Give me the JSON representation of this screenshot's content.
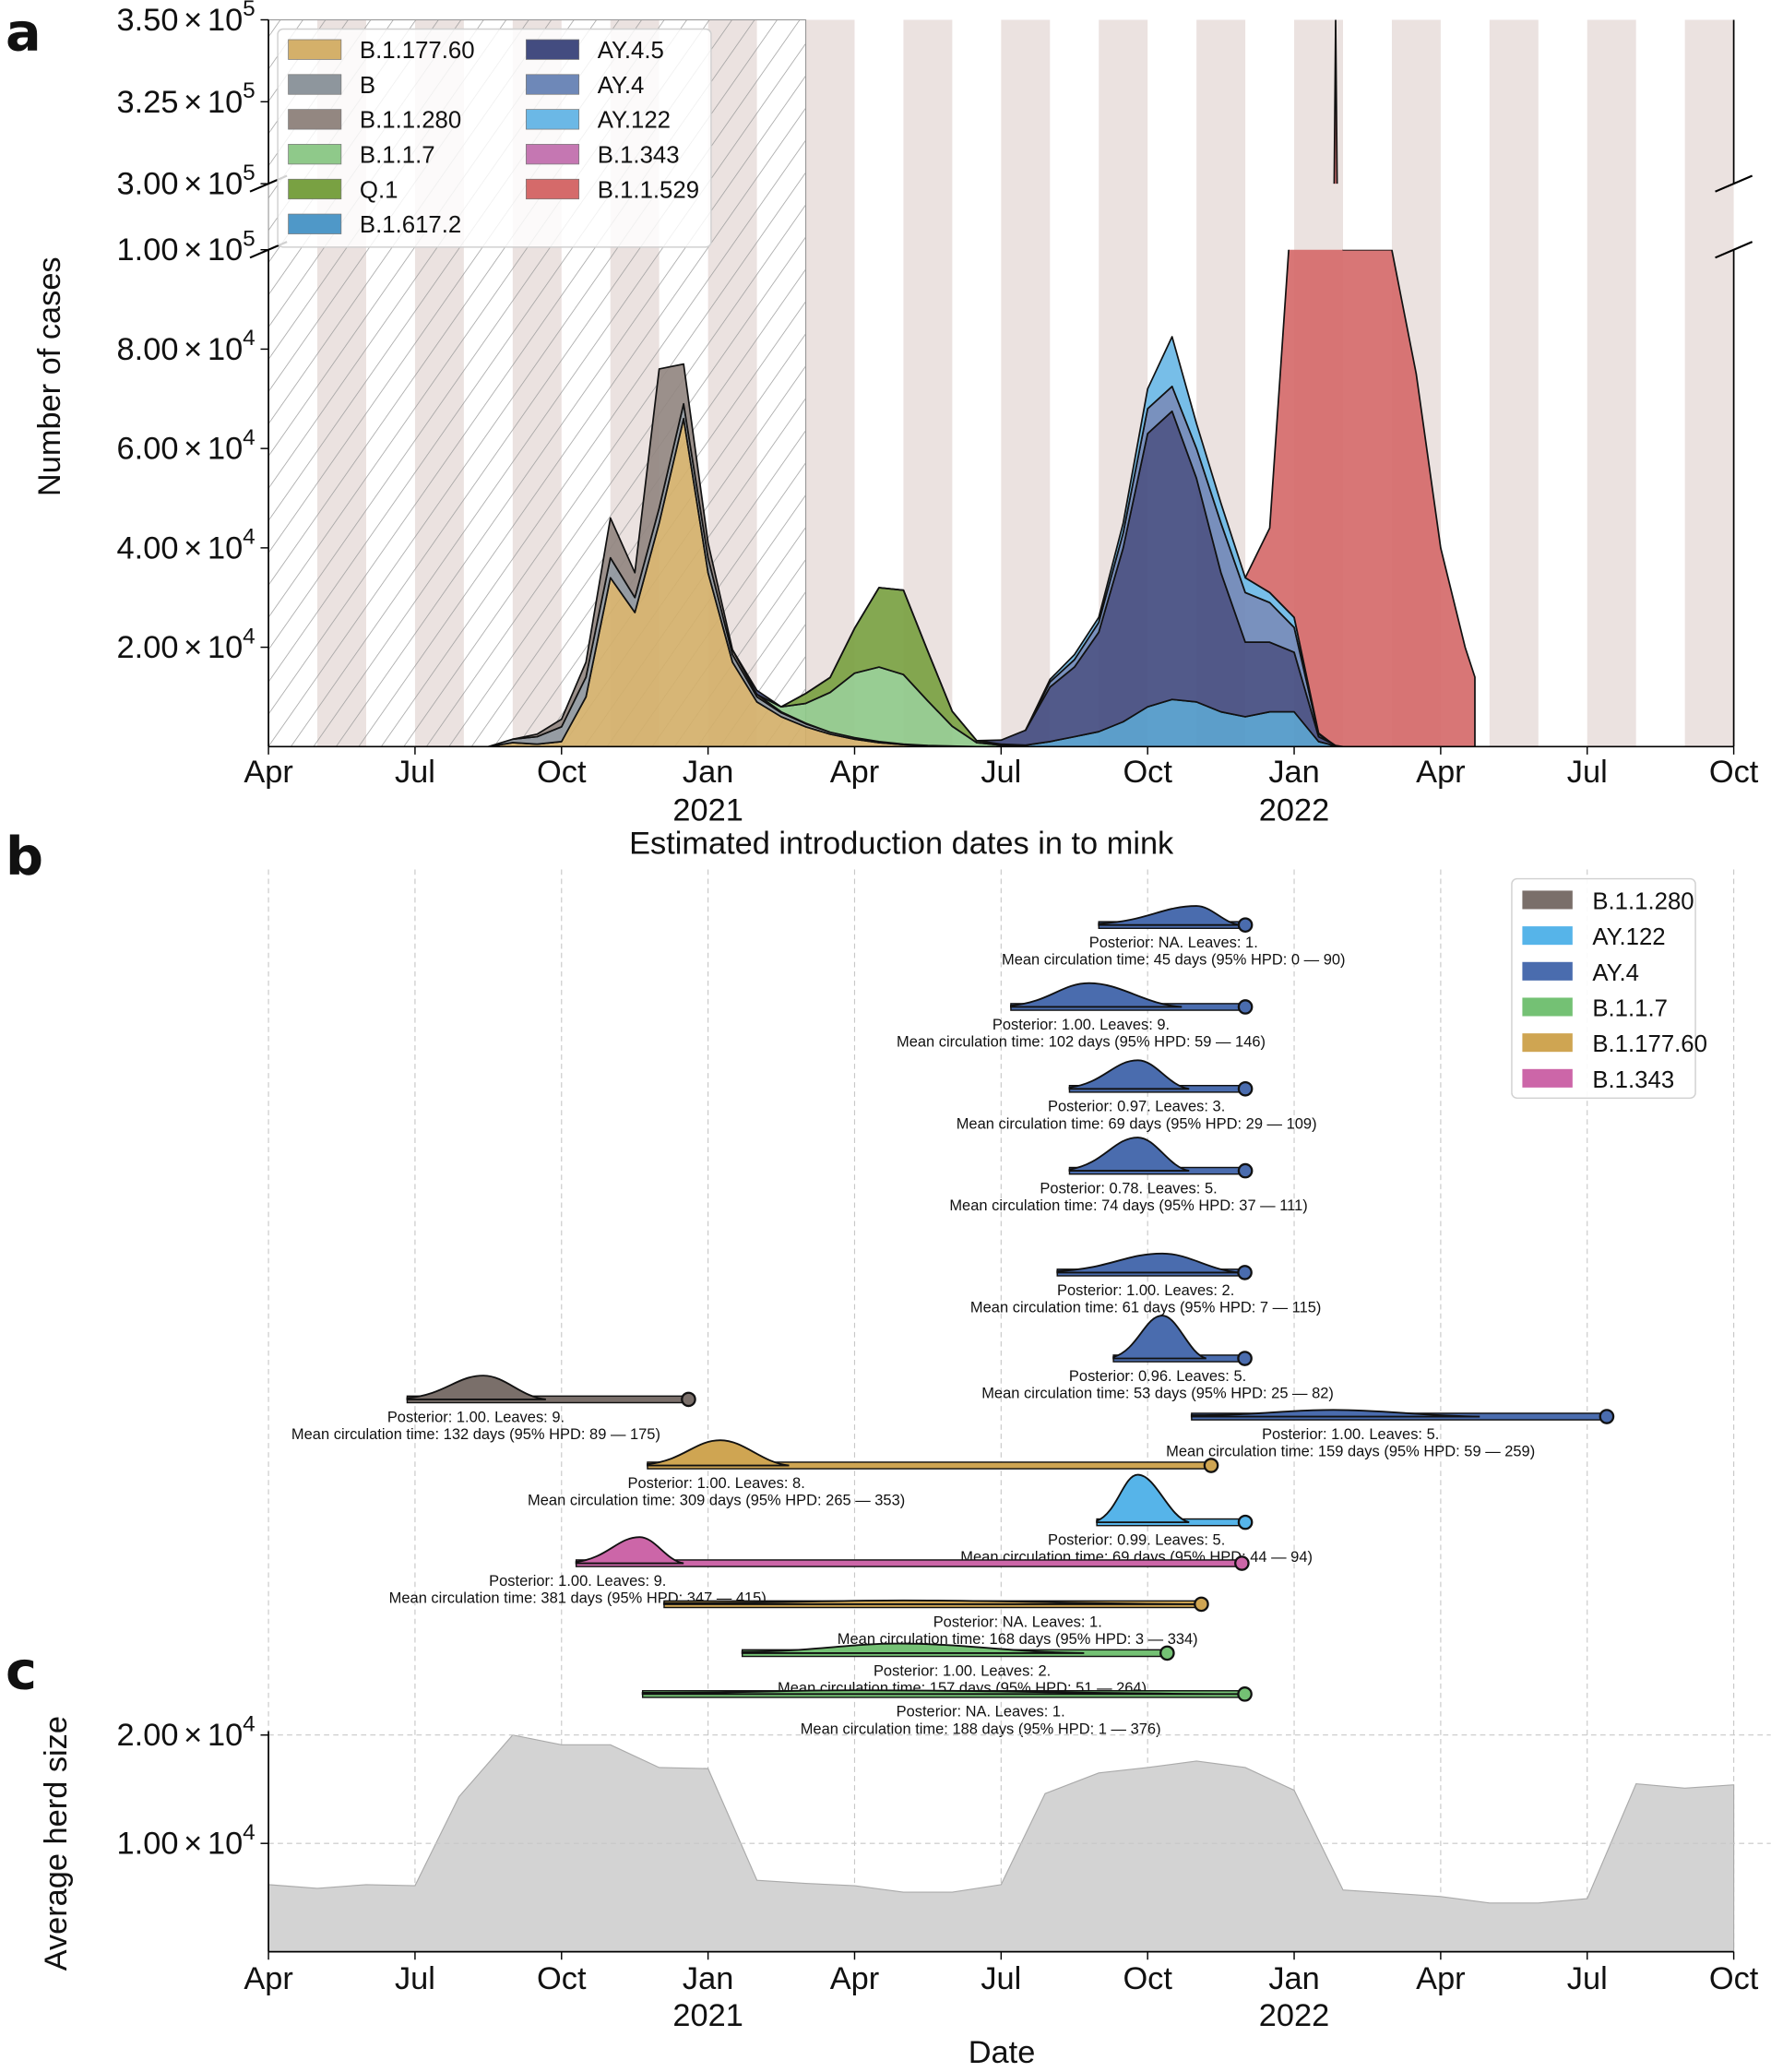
{
  "chart_data": [
    {
      "panel": "a",
      "type": "area",
      "stacked": true,
      "xlabel": "Estimated introduction dates in to mink",
      "ylabel": "Number of cases",
      "x_unit": "months since 2020-04",
      "xlim": [
        0,
        30
      ],
      "y_axis_broken": true,
      "ylim_lower": [
        0,
        100000
      ],
      "ylim_upper": [
        300000,
        350000
      ],
      "yticks_lower": [
        {
          "v": 20000,
          "m": "2.00",
          "e": "4"
        },
        {
          "v": 40000,
          "m": "4.00",
          "e": "4"
        },
        {
          "v": 60000,
          "m": "6.00",
          "e": "4"
        },
        {
          "v": 80000,
          "m": "8.00",
          "e": "4"
        },
        {
          "v": 100000,
          "m": "1.00",
          "e": "5"
        }
      ],
      "yticks_upper": [
        {
          "v": 300000,
          "m": "3.00",
          "e": "5"
        },
        {
          "v": 325000,
          "m": "3.25",
          "e": "5"
        },
        {
          "v": 350000,
          "m": "3.50",
          "e": "5"
        }
      ],
      "hatched_region": [
        0,
        11
      ],
      "legend_position": "top-left",
      "x": [
        4.5,
        5,
        5.5,
        6,
        6.5,
        7,
        7.5,
        8,
        8.5,
        9,
        9.5,
        10,
        10.5,
        11,
        11.5,
        12,
        12.5,
        13,
        13.5,
        14,
        14.5,
        15,
        15.5,
        16,
        16.5,
        17,
        17.5,
        18,
        18.5,
        19,
        19.5,
        20,
        20.5,
        21,
        21.5,
        21.7,
        21.85,
        22,
        22.5,
        23,
        23.5,
        24,
        24.5,
        24.7
      ],
      "series": [
        {
          "name": "B.1.177.60",
          "color": "#d4b06a",
          "values": [
            0,
            800,
            500,
            1000,
            10000,
            34000,
            27000,
            45000,
            66000,
            35000,
            17000,
            9000,
            6000,
            4000,
            2500,
            1500,
            800,
            400,
            200,
            100,
            0,
            0,
            0,
            0,
            0,
            0,
            0,
            0,
            0,
            0,
            0,
            0,
            0,
            0,
            0,
            0,
            0,
            0,
            0,
            0,
            0,
            0,
            0,
            0
          ]
        },
        {
          "name": "B",
          "color": "#8e969d",
          "values": [
            0,
            700,
            1500,
            3000,
            4000,
            4000,
            3000,
            3000,
            3000,
            3000,
            1500,
            1000,
            800,
            600,
            400,
            300,
            200,
            100,
            0,
            0,
            0,
            0,
            0,
            0,
            0,
            0,
            0,
            0,
            0,
            0,
            0,
            0,
            0,
            0,
            0,
            0,
            0,
            0,
            0,
            0,
            0,
            0,
            0,
            0
          ]
        },
        {
          "name": "B.1.1.280",
          "color": "#938781",
          "values": [
            0,
            0,
            500,
            1500,
            3000,
            8000,
            5000,
            28000,
            8000,
            3000,
            1000,
            500,
            200,
            100,
            0,
            0,
            0,
            0,
            0,
            0,
            0,
            0,
            0,
            0,
            0,
            0,
            0,
            0,
            0,
            0,
            0,
            0,
            0,
            0,
            0,
            0,
            0,
            0,
            0,
            0,
            0,
            0,
            0,
            0
          ]
        },
        {
          "name": "B.1.1.7",
          "color": "#8fc98a",
          "values": [
            0,
            0,
            0,
            0,
            0,
            0,
            0,
            0,
            0,
            0,
            0,
            0,
            1000,
            4000,
            8000,
            13000,
            15000,
            14000,
            9000,
            4000,
            800,
            300,
            0,
            0,
            0,
            0,
            0,
            0,
            0,
            0,
            0,
            0,
            0,
            0,
            0,
            0,
            0,
            0,
            0,
            0,
            0,
            0,
            0,
            0
          ]
        },
        {
          "name": "Q.1",
          "color": "#79a142",
          "values": [
            0,
            0,
            0,
            0,
            0,
            0,
            0,
            0,
            0,
            0,
            0,
            0,
            0,
            2000,
            3000,
            9000,
            16000,
            17000,
            10000,
            3000,
            400,
            200,
            0,
            0,
            0,
            0,
            0,
            0,
            0,
            0,
            0,
            0,
            0,
            0,
            0,
            0,
            0,
            0,
            0,
            0,
            0,
            0,
            0,
            0
          ]
        },
        {
          "name": "B.1.617.2",
          "color": "#4f98c8",
          "values": [
            0,
            0,
            0,
            0,
            0,
            0,
            0,
            0,
            0,
            0,
            0,
            0,
            0,
            0,
            0,
            0,
            0,
            0,
            0,
            0,
            0,
            0,
            300,
            1000,
            2000,
            3000,
            5000,
            8000,
            9500,
            9000,
            7000,
            6000,
            7000,
            7000,
            1000,
            500,
            0,
            0,
            0,
            0,
            0,
            0,
            0,
            0
          ]
        },
        {
          "name": "AY.4.5",
          "color": "#434c80",
          "values": [
            0,
            0,
            0,
            0,
            0,
            0,
            0,
            0,
            0,
            0,
            0,
            800,
            0,
            0,
            0,
            0,
            0,
            0,
            0,
            0,
            0,
            800,
            3000,
            11000,
            14000,
            20000,
            35000,
            55000,
            58000,
            45000,
            28000,
            15000,
            14000,
            12000,
            1000,
            500,
            200,
            0,
            0,
            0,
            0,
            0,
            0,
            0
          ]
        },
        {
          "name": "AY.4",
          "color": "#6e88b8",
          "values": [
            0,
            0,
            0,
            0,
            0,
            0,
            0,
            0,
            0,
            0,
            0,
            0,
            0,
            0,
            0,
            0,
            0,
            0,
            0,
            0,
            0,
            0,
            0,
            1000,
            1500,
            2000,
            3000,
            5000,
            5000,
            6000,
            10000,
            10000,
            8000,
            5000,
            500,
            200,
            0,
            0,
            0,
            0,
            0,
            0,
            0,
            0
          ]
        },
        {
          "name": "AY.122",
          "color": "#6bb8e6",
          "values": [
            0,
            0,
            0,
            0,
            0,
            0,
            0,
            0,
            0,
            0,
            0,
            0,
            0,
            0,
            0,
            0,
            0,
            0,
            0,
            0,
            0,
            0,
            0,
            500,
            1000,
            1000,
            2000,
            4000,
            10000,
            5000,
            4000,
            3000,
            2000,
            2000,
            200,
            0,
            0,
            0,
            0,
            0,
            0,
            0,
            0,
            0
          ]
        },
        {
          "name": "B.1.343",
          "color": "#c577b2",
          "values": [
            0,
            0,
            0,
            0,
            0,
            0,
            0,
            0,
            0,
            0,
            0,
            0,
            0,
            0,
            0,
            0,
            0,
            0,
            0,
            0,
            0,
            0,
            0,
            0,
            0,
            0,
            0,
            0,
            0,
            0,
            0,
            0,
            0,
            0,
            0,
            0,
            0,
            0,
            0,
            0,
            0,
            0,
            0,
            0
          ]
        },
        {
          "name": "B.1.1.529",
          "color": "#d56a6a",
          "values": [
            0,
            0,
            0,
            0,
            0,
            0,
            0,
            0,
            0,
            0,
            0,
            0,
            0,
            0,
            0,
            0,
            0,
            0,
            0,
            0,
            0,
            0,
            0,
            0,
            0,
            0,
            0,
            0,
            0,
            0,
            0,
            0,
            13000,
            90000,
            100000,
            100000,
            350000,
            100000,
            100000,
            100000,
            75000,
            40000,
            20000,
            14000
          ]
        }
      ],
      "legend": [
        [
          "B.1.177.60",
          "B",
          "B.1.1.280",
          "B.1.1.7",
          "Q.1",
          "B.1.617.2"
        ],
        [
          "AY.4.5",
          "AY.4",
          "AY.122",
          "B.1.343",
          "B.1.1.529"
        ]
      ]
    },
    {
      "panel": "b",
      "type": "ridgeline",
      "x_unit": "months since 2020-04",
      "legend_position": "top-right",
      "legend": [
        {
          "name": "B.1.1.280",
          "color": "#7a6f6a"
        },
        {
          "name": "AY.122",
          "color": "#56b4e9"
        },
        {
          "name": "AY.4",
          "color": "#4a6cae"
        },
        {
          "name": "B.1.1.7",
          "color": "#74c174"
        },
        {
          "name": "B.1.177.60",
          "color": "#cfa552"
        },
        {
          "name": "B.1.343",
          "color": "#cc66a8"
        }
      ],
      "clusters": [
        {
          "lineage": "AY.4",
          "start": 17.0,
          "peak": 19.0,
          "end": 19.9,
          "sample": 20.0,
          "rel_density": 0.4,
          "posterior": "Posterior: NA. Leaves: 1.",
          "circulation": "Mean circulation time: 45 days (95% HPD: 0 — 90)"
        },
        {
          "lineage": "AY.4",
          "start": 15.2,
          "peak": 16.8,
          "end": 18.7,
          "sample": 20.0,
          "rel_density": 0.5,
          "posterior": "Posterior: 1.00. Leaves: 9.",
          "circulation": "Mean circulation time: 102 days (95% HPD: 59 — 146)"
        },
        {
          "lineage": "AY.4",
          "start": 16.4,
          "peak": 17.8,
          "end": 18.85,
          "sample": 20.0,
          "rel_density": 0.6,
          "posterior": "Posterior: 0.97. Leaves: 3.",
          "circulation": "Mean circulation time: 69 days (95% HPD: 29 — 109)"
        },
        {
          "lineage": "AY.4",
          "start": 16.4,
          "peak": 17.8,
          "end": 18.85,
          "sample": 20.0,
          "rel_density": 0.7,
          "posterior": "Posterior: 0.78. Leaves: 5.",
          "circulation": "Mean circulation time: 74 days (95% HPD: 37 — 111)"
        },
        {
          "lineage": "AY.4",
          "start": 16.15,
          "peak": 18.3,
          "end": 19.9,
          "sample": 19.99,
          "rel_density": 0.4,
          "posterior": "Posterior: 1.00. Leaves: 2.",
          "circulation": "Mean circulation time: 61 days (95% HPD: 7 — 115)"
        },
        {
          "lineage": "AY.4",
          "start": 17.3,
          "peak": 18.3,
          "end": 19.2,
          "sample": 19.99,
          "rel_density": 0.9,
          "posterior": "Posterior: 0.96. Leaves: 5.",
          "circulation": "Mean circulation time: 53 days (95% HPD: 25 — 82)"
        },
        {
          "lineage": "B.1.1.280",
          "start": 2.84,
          "peak": 4.4,
          "end": 5.68,
          "sample": 8.6,
          "rel_density": 0.5,
          "posterior": "Posterior: 1.00. Leaves: 9.",
          "circulation": "Mean circulation time: 132 days (95% HPD: 89 — 175)"
        },
        {
          "lineage": "AY.4",
          "start": 18.9,
          "peak": 21.8,
          "end": 24.8,
          "sample": 27.4,
          "rel_density": 0.14,
          "posterior": "Posterior: 1.00. Leaves: 5.",
          "circulation": "Mean circulation time: 159 days (95% HPD: 59 — 259)"
        },
        {
          "lineage": "B.1.177.60",
          "start": 7.76,
          "peak": 9.25,
          "end": 10.66,
          "sample": 19.3,
          "rel_density": 0.53,
          "posterior": "Posterior: 1.00. Leaves: 8.",
          "circulation": "Mean circulation time: 309 days (95% HPD: 265 — 353)"
        },
        {
          "lineage": "AY.122",
          "start": 16.96,
          "peak": 17.8,
          "end": 18.85,
          "sample": 20.0,
          "rel_density": 1.0,
          "posterior": "Posterior: 0.99. Leaves: 5.",
          "circulation": "Mean circulation time: 69 days (95% HPD: 44 — 94)"
        },
        {
          "lineage": "B.1.343",
          "start": 6.3,
          "peak": 7.6,
          "end": 8.5,
          "sample": 19.93,
          "rel_density": 0.55,
          "posterior": "Posterior: 1.00. Leaves: 9.",
          "circulation": "Mean circulation time: 381 days (95% HPD: 347 — 415)"
        },
        {
          "lineage": "B.1.177.60",
          "start": 8.1,
          "peak": 13.0,
          "end": 19.0,
          "sample": 19.1,
          "rel_density": 0.08,
          "posterior": "Posterior: NA. Leaves: 1.",
          "circulation": "Mean circulation time: 168 days (95% HPD: 3 — 334)"
        },
        {
          "lineage": "B.1.1.7",
          "start": 9.7,
          "peak": 12.9,
          "end": 16.7,
          "sample": 18.4,
          "rel_density": 0.2,
          "posterior": "Posterior: 1.00. Leaves: 2.",
          "circulation": "Mean circulation time: 157 days (95% HPD: 51 — 264)"
        },
        {
          "lineage": "B.1.1.7",
          "start": 7.66,
          "peak": 12.0,
          "end": 19.9,
          "sample": 19.99,
          "rel_density": 0.08,
          "posterior": "Posterior: NA. Leaves: 1.",
          "circulation": "Mean circulation time: 188 days (95% HPD: 1 — 376)"
        }
      ]
    },
    {
      "panel": "c",
      "type": "area",
      "xlabel": "Date",
      "ylabel": "Average herd size",
      "x_unit": "months since 2020-04",
      "xlim": [
        0,
        30
      ],
      "ylim": [
        0,
        20000
      ],
      "yticks": [
        {
          "v": 10000,
          "m": "1.00",
          "e": "4"
        },
        {
          "v": 20000,
          "m": "2.00",
          "e": "4"
        }
      ],
      "grid": true,
      "color": "#d3d3d3",
      "x": [
        0,
        1,
        2,
        3,
        3.9,
        5,
        6,
        7,
        8,
        9,
        10,
        11,
        12,
        13,
        14,
        15,
        15.9,
        17,
        18,
        19,
        20,
        21,
        22,
        23,
        24,
        25,
        26,
        27,
        28,
        29,
        30
      ],
      "values": [
        6200,
        5850,
        6200,
        6100,
        14300,
        20000,
        19100,
        19100,
        17000,
        16900,
        6600,
        6300,
        6100,
        5500,
        5500,
        6200,
        14600,
        16500,
        17000,
        17600,
        17000,
        14900,
        5700,
        5400,
        5100,
        4500,
        4500,
        4900,
        15500,
        15100,
        15400
      ]
    }
  ],
  "xticks": [
    {
      "v": 0,
      "label": "Apr",
      "year": ""
    },
    {
      "v": 3,
      "label": "Jul",
      "year": ""
    },
    {
      "v": 6,
      "label": "Oct",
      "year": ""
    },
    {
      "v": 9,
      "label": "Jan",
      "year": "2021"
    },
    {
      "v": 12,
      "label": "Apr",
      "year": ""
    },
    {
      "v": 15,
      "label": "Jul",
      "year": ""
    },
    {
      "v": 18,
      "label": "Oct",
      "year": ""
    },
    {
      "v": 21,
      "label": "Jan",
      "year": "2022"
    },
    {
      "v": 24,
      "label": "Apr",
      "year": ""
    },
    {
      "v": 27,
      "label": "Jul",
      "year": ""
    },
    {
      "v": 30,
      "label": "Oct",
      "year": ""
    }
  ],
  "panels": {
    "a": "a",
    "b": "b",
    "c": "c"
  },
  "tick_times": "×",
  "tick_base": "10"
}
